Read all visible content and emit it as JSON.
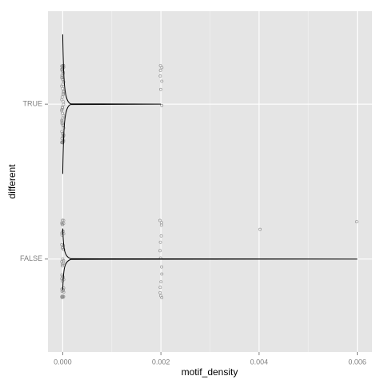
{
  "chart_data": {
    "type": "violin",
    "x_label": "motif_density",
    "y_label": "different",
    "categories": [
      "FALSE",
      "TRUE"
    ],
    "series": [
      {
        "name": "FALSE",
        "max": 0.006,
        "points": [
          0,
          0,
          0,
          0,
          0,
          0,
          0,
          0,
          0,
          0,
          0,
          0,
          0,
          0,
          0,
          0,
          0,
          0,
          0,
          0,
          0,
          0,
          0,
          0,
          0,
          0,
          0,
          0,
          0,
          0,
          0,
          0,
          0,
          0,
          0,
          0,
          0,
          0,
          0,
          0,
          0.002,
          0.002,
          0.002,
          0.002,
          0.002,
          0.002,
          0.002,
          0.002,
          0.002,
          0.002,
          0.002,
          0.002,
          0.002,
          0.002,
          0.004,
          0.006
        ]
      },
      {
        "name": "TRUE",
        "max": 0.002,
        "points": [
          0,
          0,
          0,
          0,
          0,
          0,
          0,
          0,
          0,
          0,
          0,
          0,
          0,
          0,
          0,
          0,
          0,
          0,
          0,
          0,
          0,
          0,
          0,
          0,
          0,
          0,
          0,
          0,
          0,
          0,
          0,
          0,
          0,
          0,
          0,
          0,
          0,
          0,
          0,
          0,
          0,
          0,
          0,
          0,
          0,
          0,
          0,
          0,
          0,
          0,
          0,
          0,
          0,
          0,
          0,
          0,
          0,
          0,
          0,
          0,
          0.002,
          0.002,
          0.002,
          0.002,
          0.002,
          0.002,
          0.002
        ]
      }
    ],
    "xlim": [
      -0.0003,
      0.0063
    ],
    "xticks": [
      {
        "value": 0,
        "label": "0.000"
      },
      {
        "value": 0.002,
        "label": "0.002"
      },
      {
        "value": 0.004,
        "label": "0.004"
      },
      {
        "value": 0.006,
        "label": "0.006"
      }
    ],
    "grid": true,
    "panel_color": "#e5e5e5",
    "line_color": "#000000",
    "point_color": "#8c8c8c"
  }
}
